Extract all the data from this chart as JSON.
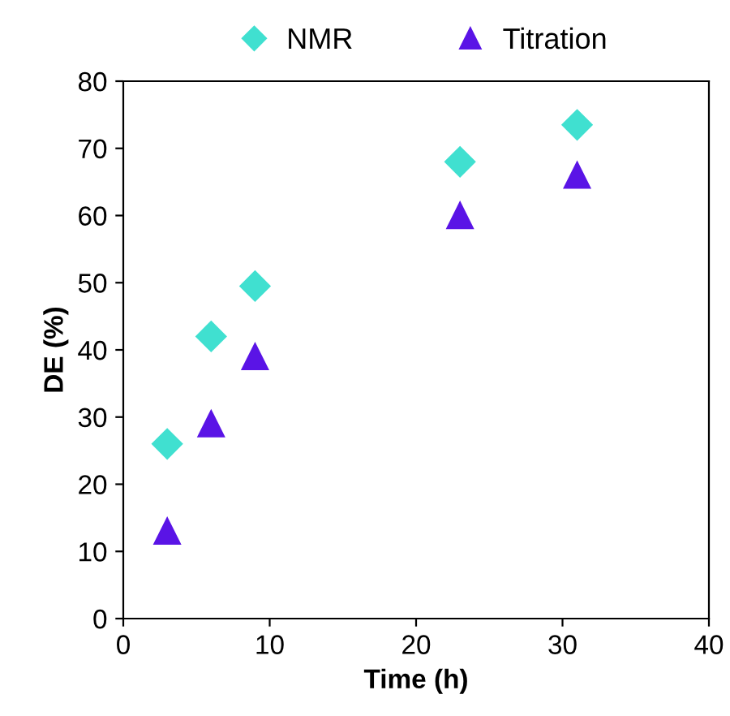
{
  "chart_data": {
    "type": "scatter",
    "xlabel": "Time (h)",
    "ylabel": "DE (%)",
    "x": [
      3,
      6,
      9,
      23,
      31
    ],
    "series": [
      {
        "name": "NMR",
        "color": "#40e0d0",
        "marker": "diamond",
        "values": [
          26,
          42,
          49.5,
          68,
          73.5
        ]
      },
      {
        "name": "Titration",
        "color": "#5a14e6",
        "marker": "triangle",
        "values": [
          13,
          29,
          39,
          60,
          66
        ]
      }
    ],
    "xlim": [
      0,
      40
    ],
    "xticks": [
      0,
      10,
      20,
      30,
      40
    ],
    "ylim": [
      0,
      80
    ],
    "yticks": [
      0,
      10,
      20,
      30,
      40,
      50,
      60,
      70,
      80
    ],
    "grid": false,
    "legend": "top"
  }
}
